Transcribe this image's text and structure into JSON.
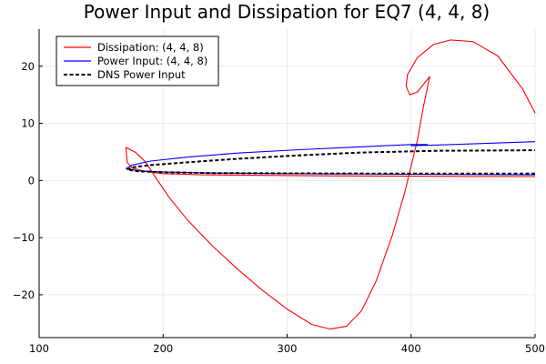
{
  "chart_data": {
    "type": "line",
    "title": "Power Input and Dissipation for EQ7 (4, 4, 8)",
    "xlabel": "",
    "ylabel": "",
    "xlim": [
      100,
      500
    ],
    "ylim": [
      -27.5,
      26.5
    ],
    "xticks": [
      100,
      200,
      300,
      400,
      500
    ],
    "yticks": [
      -20,
      -10,
      0,
      10,
      20
    ],
    "grid": true,
    "legend_position": "top-left",
    "series": [
      {
        "name": "Dissipation: (4, 4, 8)",
        "color": "#ff0000",
        "style": "solid",
        "points": [
          [
            500,
            0.7
          ],
          [
            420,
            0.75
          ],
          [
            340,
            0.8
          ],
          [
            280,
            0.9
          ],
          [
            230,
            1.0
          ],
          [
            200,
            1.2
          ],
          [
            185,
            1.6
          ],
          [
            175,
            2.2
          ],
          [
            171,
            3.2
          ],
          [
            170,
            5.8
          ],
          [
            178,
            4.9
          ],
          [
            186,
            3.2
          ],
          [
            194,
            0.5
          ],
          [
            205,
            -3.0
          ],
          [
            220,
            -7.0
          ],
          [
            240,
            -11.5
          ],
          [
            260,
            -15.5
          ],
          [
            280,
            -19.2
          ],
          [
            300,
            -22.5
          ],
          [
            320,
            -25.2
          ],
          [
            335,
            -26.0
          ],
          [
            348,
            -25.5
          ],
          [
            360,
            -22.8
          ],
          [
            372,
            -17.5
          ],
          [
            385,
            -9.5
          ],
          [
            395,
            -2.0
          ],
          [
            405,
            7.0
          ],
          [
            410,
            13.0
          ],
          [
            415,
            18.2
          ],
          [
            405,
            15.5
          ],
          [
            399,
            15.0
          ],
          [
            396,
            16.5
          ],
          [
            397,
            18.5
          ],
          [
            405,
            21.5
          ],
          [
            418,
            23.8
          ],
          [
            432,
            24.6
          ],
          [
            450,
            24.3
          ],
          [
            470,
            21.8
          ],
          [
            490,
            16.0
          ],
          [
            500,
            11.8
          ]
        ]
      },
      {
        "name": "Power Input: (4, 4, 8)",
        "color": "#0000ff",
        "style": "solid",
        "points": [
          [
            500,
            1.0
          ],
          [
            400,
            1.1
          ],
          [
            300,
            1.2
          ],
          [
            240,
            1.3
          ],
          [
            200,
            1.5
          ],
          [
            180,
            1.7
          ],
          [
            170,
            2.1
          ],
          [
            175,
            2.7
          ],
          [
            190,
            3.4
          ],
          [
            220,
            4.1
          ],
          [
            260,
            4.8
          ],
          [
            310,
            5.4
          ],
          [
            360,
            5.9
          ],
          [
            400,
            6.3
          ],
          [
            413,
            6.3
          ],
          [
            400,
            6.1
          ],
          [
            420,
            6.2
          ],
          [
            460,
            6.5
          ],
          [
            500,
            6.8
          ]
        ]
      },
      {
        "name": "DNS Power Input",
        "color": "#000000",
        "style": "dashed",
        "points": [
          [
            500,
            1.2
          ],
          [
            400,
            1.2
          ],
          [
            300,
            1.25
          ],
          [
            240,
            1.3
          ],
          [
            200,
            1.45
          ],
          [
            180,
            1.6
          ],
          [
            171,
            1.9
          ],
          [
            175,
            2.3
          ],
          [
            190,
            2.7
          ],
          [
            220,
            3.2
          ],
          [
            260,
            3.8
          ],
          [
            310,
            4.4
          ],
          [
            360,
            4.9
          ],
          [
            420,
            5.2
          ],
          [
            500,
            5.3
          ]
        ]
      }
    ]
  }
}
